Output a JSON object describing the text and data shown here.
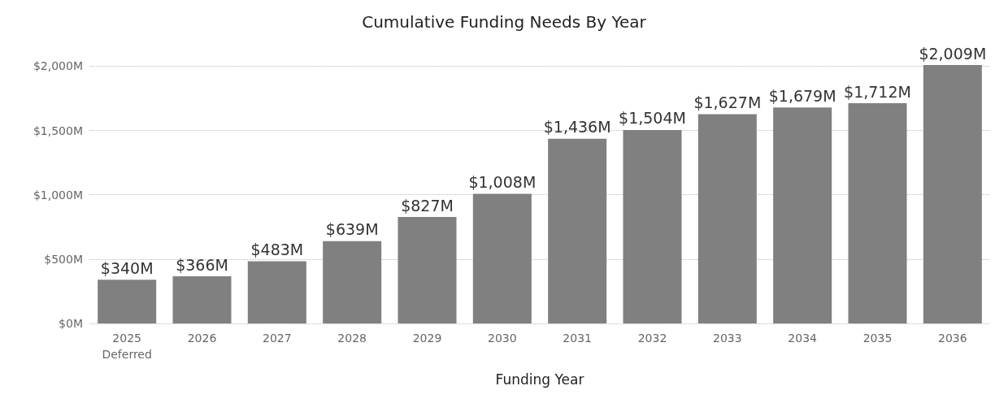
{
  "chart_data": {
    "type": "bar",
    "title": "Cumulative Funding Needs By Year",
    "xlabel": "Funding Year",
    "categories": [
      "2025\nDeferred",
      "2026",
      "2027",
      "2028",
      "2029",
      "2030",
      "2031",
      "2032",
      "2033",
      "2034",
      "2035",
      "2036"
    ],
    "values": [
      340,
      366,
      483,
      639,
      827,
      1008,
      1436,
      1504,
      1627,
      1679,
      1712,
      2009
    ],
    "value_labels": [
      "$340M",
      "$366M",
      "$483M",
      "$639M",
      "$827M",
      "$1,008M",
      "$1,436M",
      "$1,504M",
      "$1,627M",
      "$1,679M",
      "$1,712M",
      "$2,009M"
    ],
    "color": "#808080",
    "ylim": [
      0,
      2009
    ],
    "yticks": [
      {
        "value": 0,
        "label": "$0M"
      },
      {
        "value": 500,
        "label": "$500M"
      },
      {
        "value": 1000,
        "label": "$1,000M"
      },
      {
        "value": 1500,
        "label": "$1,500M"
      },
      {
        "value": 2000,
        "label": "$2,000M"
      }
    ],
    "grid": "y"
  }
}
